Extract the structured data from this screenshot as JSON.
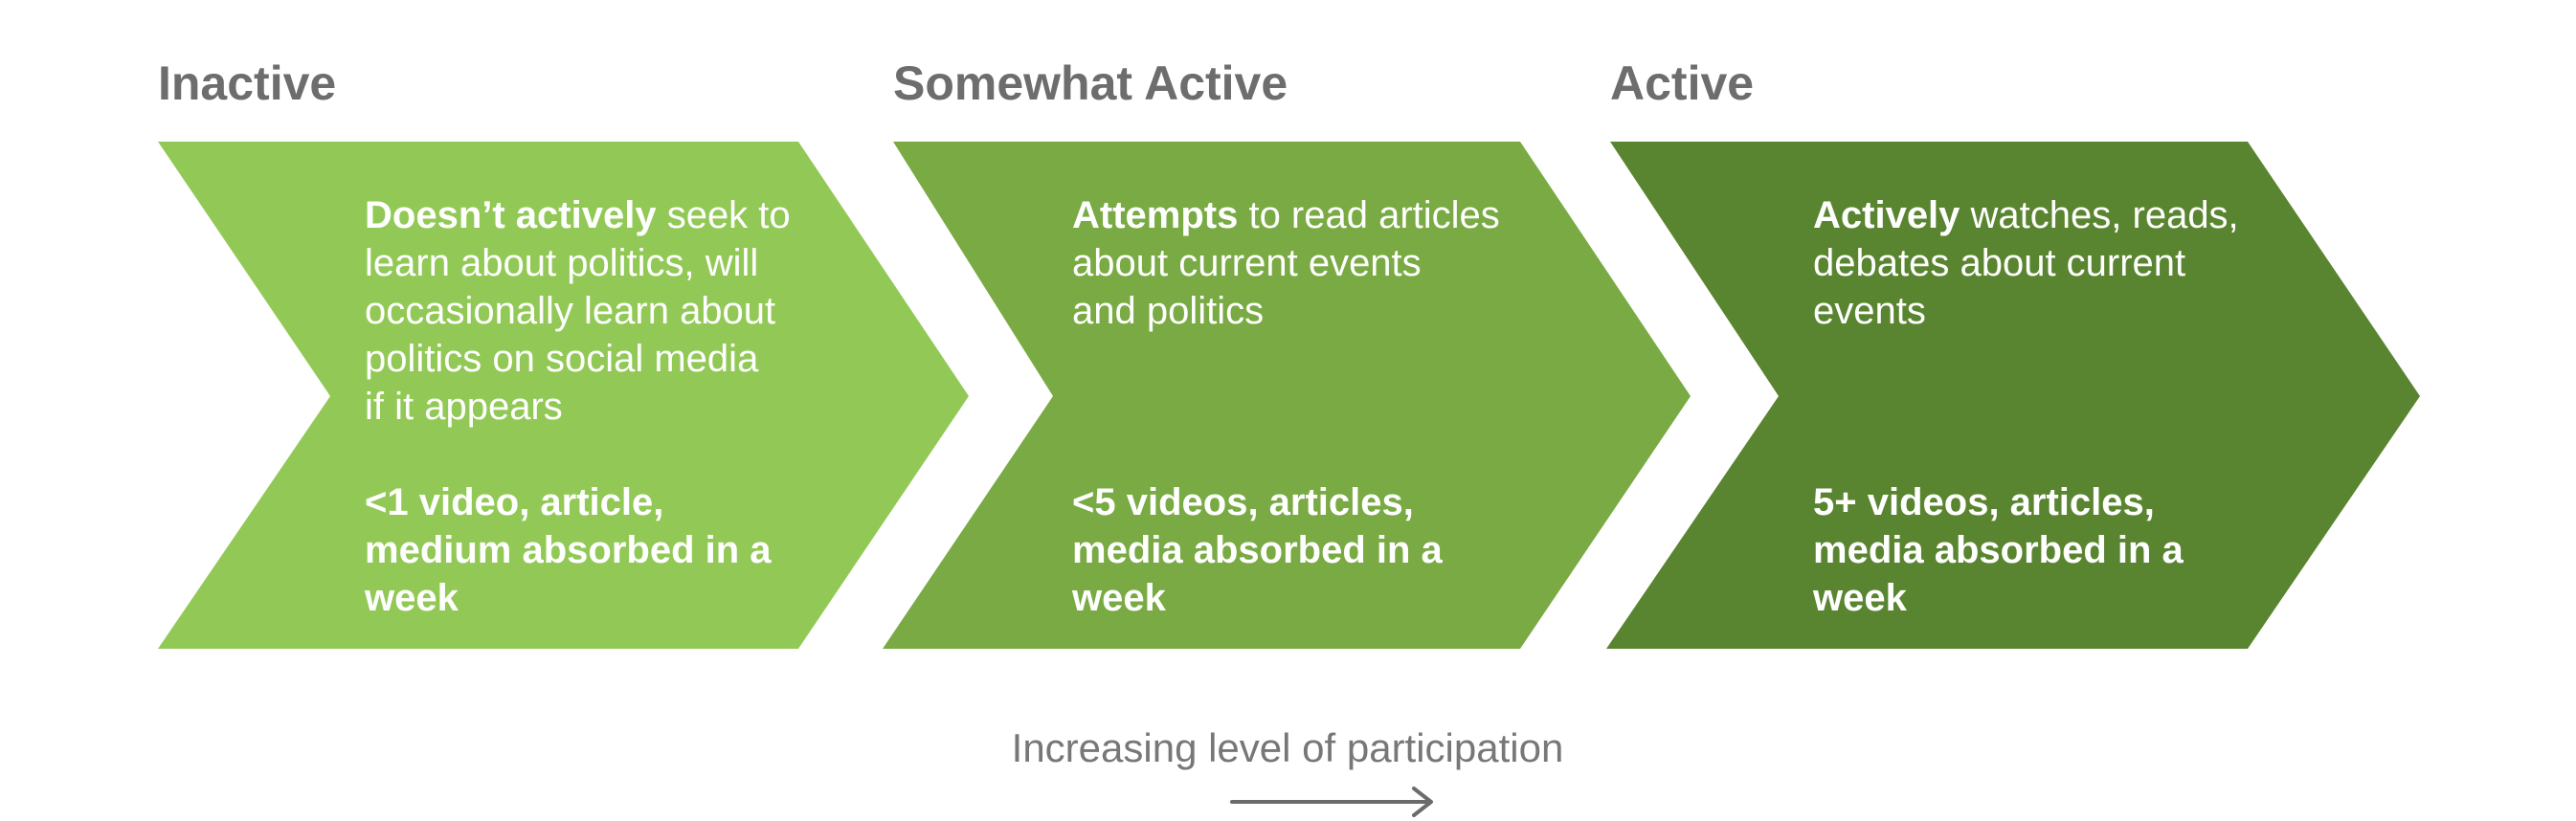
{
  "stages": [
    {
      "title": "Inactive",
      "color": "#92c956",
      "description": {
        "bold_lead": "Doesn’t actively",
        "lines": [
          " seek to",
          "learn about politics, will",
          "occasionally learn about",
          "politics on social media",
          "if it appears"
        ]
      },
      "metric_lines": [
        "<1 video, article,",
        "medium absorbed in a",
        "week"
      ]
    },
    {
      "title": "Somewhat Active",
      "color": "#79aa43",
      "description": {
        "bold_lead": "Attempts",
        "lines": [
          " to read articles",
          "about current events",
          "and politics"
        ]
      },
      "metric_lines": [
        "<5 videos, articles,",
        "media absorbed in a",
        "week"
      ]
    },
    {
      "title": "Active",
      "color": "#5a8530",
      "description": {
        "bold_lead": "Actively",
        "lines": [
          " watches, reads,",
          "debates about current",
          "events"
        ]
      },
      "metric_lines": [
        "5+ videos, articles,",
        "media absorbed in a",
        "week"
      ]
    }
  ],
  "axis": {
    "label": "Increasing level of participation",
    "arrow_icon": "arrow-right-icon",
    "arrow_color": "#6b6b6b"
  }
}
